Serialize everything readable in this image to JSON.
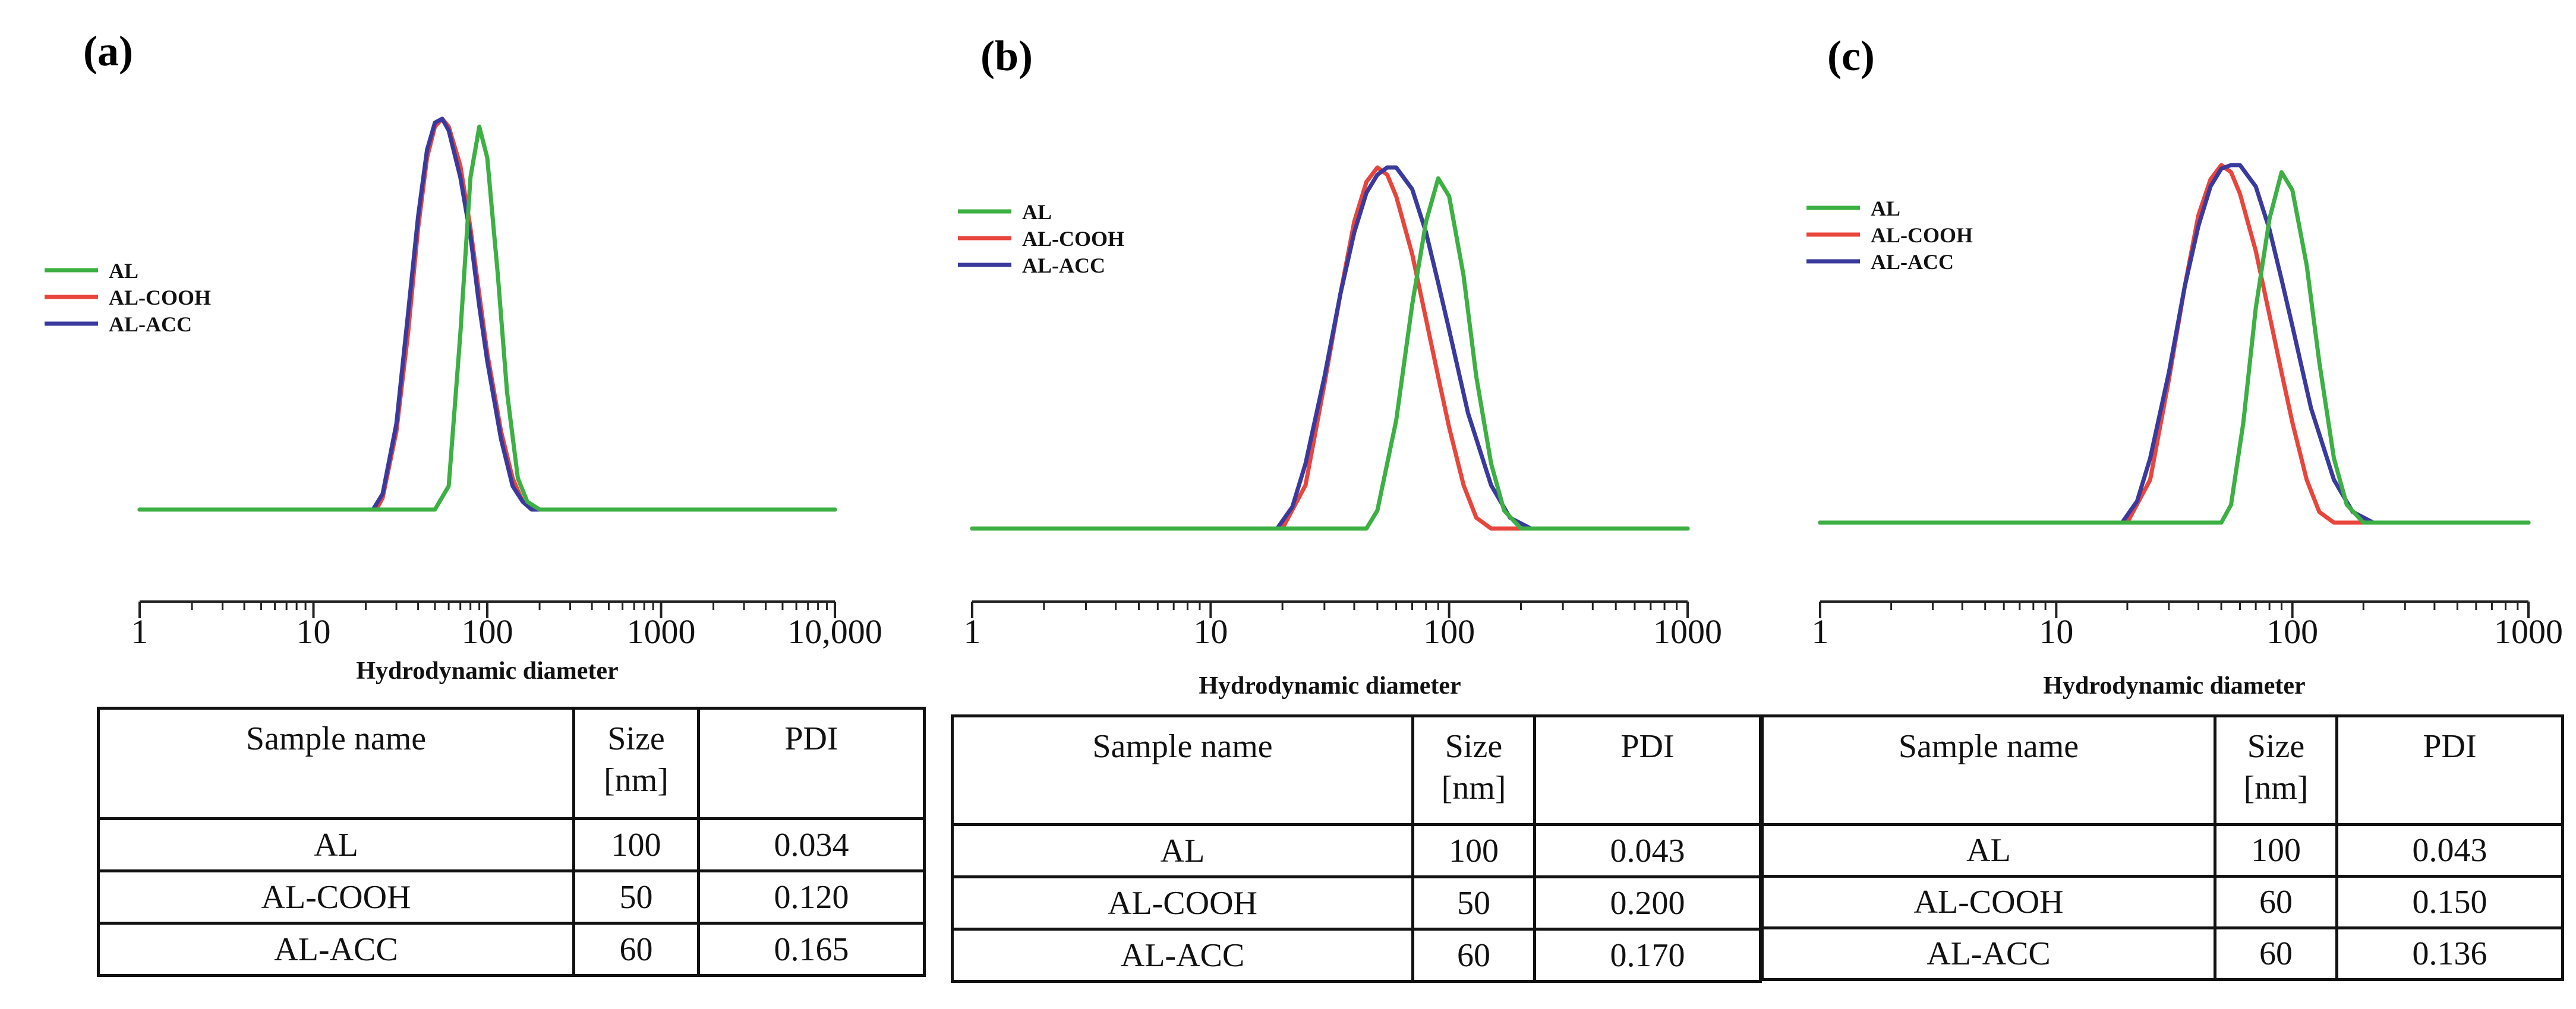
{
  "chart_data": [
    {
      "type": "line",
      "panel_label": "(a)",
      "xlabel": "Hydrodynamic diameter",
      "ylabel": "",
      "xscale": "log",
      "xlim": [
        1,
        10000
      ],
      "x_ticks": [
        "1",
        "10",
        "100",
        "1000",
        "10,000"
      ],
      "legend_position": "left",
      "series": [
        {
          "name": "AL",
          "color": "#3cb043",
          "x": [
            1,
            50,
            60,
            70,
            80,
            90,
            100,
            115,
            130,
            150,
            170,
            200,
            10000
          ],
          "y": [
            0,
            0,
            0.06,
            0.45,
            0.85,
            0.98,
            0.9,
            0.6,
            0.3,
            0.08,
            0.02,
            0,
            0
          ]
        },
        {
          "name": "AL-COOH",
          "color": "#e8453c",
          "x": [
            1,
            23,
            25,
            30,
            35,
            40,
            45,
            50,
            55,
            60,
            70,
            80,
            90,
            100,
            120,
            140,
            160,
            180,
            10000
          ],
          "y": [
            0,
            0,
            0.03,
            0.2,
            0.45,
            0.72,
            0.9,
            0.98,
            1.0,
            0.98,
            0.88,
            0.72,
            0.55,
            0.4,
            0.2,
            0.08,
            0.02,
            0,
            0
          ]
        },
        {
          "name": "AL-ACC",
          "color": "#3a3a9e",
          "x": [
            1,
            22,
            25,
            30,
            35,
            40,
            45,
            50,
            55,
            60,
            70,
            80,
            90,
            100,
            120,
            140,
            160,
            180,
            10000
          ],
          "y": [
            0,
            0,
            0.04,
            0.22,
            0.5,
            0.75,
            0.92,
            0.99,
            1.0,
            0.97,
            0.85,
            0.7,
            0.52,
            0.38,
            0.18,
            0.06,
            0.02,
            0,
            0
          ]
        }
      ]
    },
    {
      "type": "line",
      "panel_label": "(b)",
      "xlabel": "Hydrodynamic diameter",
      "ylabel": "",
      "xscale": "log",
      "xlim": [
        1,
        1000
      ],
      "x_ticks": [
        "1",
        "10",
        "100",
        "1000"
      ],
      "legend_position": "top-left",
      "series": [
        {
          "name": "AL",
          "color": "#3cb043",
          "x": [
            1,
            45,
            50,
            60,
            70,
            80,
            90,
            100,
            115,
            130,
            150,
            170,
            200,
            1000
          ],
          "y": [
            0,
            0,
            0.05,
            0.3,
            0.62,
            0.85,
            0.97,
            0.92,
            0.7,
            0.42,
            0.18,
            0.05,
            0,
            0
          ]
        },
        {
          "name": "AL-COOH",
          "color": "#e8453c",
          "x": [
            1,
            20,
            25,
            30,
            35,
            40,
            45,
            50,
            55,
            60,
            70,
            80,
            90,
            100,
            115,
            130,
            150,
            1000
          ],
          "y": [
            0,
            0,
            0.12,
            0.4,
            0.65,
            0.85,
            0.96,
            1.0,
            0.98,
            0.92,
            0.76,
            0.58,
            0.42,
            0.28,
            0.12,
            0.03,
            0,
            0
          ]
        },
        {
          "name": "AL-ACC",
          "color": "#3a3a9e",
          "x": [
            1,
            19,
            22,
            25,
            30,
            35,
            40,
            45,
            50,
            55,
            60,
            70,
            80,
            90,
            100,
            120,
            150,
            180,
            220,
            1000
          ],
          "y": [
            0,
            0,
            0.06,
            0.18,
            0.42,
            0.65,
            0.82,
            0.93,
            0.98,
            1.0,
            1.0,
            0.94,
            0.82,
            0.68,
            0.55,
            0.32,
            0.12,
            0.03,
            0,
            0
          ]
        }
      ]
    },
    {
      "type": "line",
      "panel_label": "(c)",
      "xlabel": "Hydrodynamic diameter",
      "ylabel": "",
      "xscale": "log",
      "xlim": [
        1,
        1000
      ],
      "x_ticks": [
        "1",
        "10",
        "100",
        "1000"
      ],
      "legend_position": "top-left",
      "series": [
        {
          "name": "AL",
          "color": "#3cb043",
          "x": [
            1,
            50,
            55,
            62,
            70,
            80,
            90,
            100,
            115,
            130,
            150,
            170,
            200,
            1000
          ],
          "y": [
            0,
            0,
            0.05,
            0.28,
            0.6,
            0.85,
            0.98,
            0.93,
            0.72,
            0.45,
            0.18,
            0.05,
            0,
            0
          ]
        },
        {
          "name": "AL-COOH",
          "color": "#e8453c",
          "x": [
            1,
            20,
            25,
            30,
            35,
            40,
            45,
            50,
            55,
            60,
            70,
            80,
            90,
            100,
            115,
            130,
            150,
            1000
          ],
          "y": [
            0,
            0,
            0.12,
            0.4,
            0.66,
            0.86,
            0.96,
            1.0,
            0.98,
            0.92,
            0.76,
            0.58,
            0.42,
            0.28,
            0.12,
            0.03,
            0,
            0
          ]
        },
        {
          "name": "AL-ACC",
          "color": "#3a3a9e",
          "x": [
            1,
            19,
            22,
            25,
            30,
            35,
            40,
            45,
            50,
            55,
            60,
            70,
            80,
            90,
            100,
            120,
            150,
            180,
            220,
            1000
          ],
          "y": [
            0,
            0,
            0.06,
            0.18,
            0.42,
            0.66,
            0.83,
            0.94,
            0.99,
            1.0,
            1.0,
            0.94,
            0.82,
            0.68,
            0.55,
            0.32,
            0.12,
            0.03,
            0,
            0
          ]
        }
      ]
    }
  ],
  "tables": [
    {
      "headers": [
        "Sample name",
        "Size [nm]",
        "PDI"
      ],
      "header_lines": [
        [
          "Sample name"
        ],
        [
          "Size",
          "[nm]"
        ],
        [
          "PDI"
        ]
      ],
      "rows": [
        [
          "AL",
          "100",
          "0.034"
        ],
        [
          "AL-COOH",
          "50",
          "0.120"
        ],
        [
          "AL-ACC",
          "60",
          "0.165"
        ]
      ]
    },
    {
      "headers": [
        "Sample name",
        "Size [nm]",
        "PDI"
      ],
      "header_lines": [
        [
          "Sample name"
        ],
        [
          "Size",
          "[nm]"
        ],
        [
          "PDI"
        ]
      ],
      "rows": [
        [
          "AL",
          "100",
          "0.043"
        ],
        [
          "AL-COOH",
          "50",
          "0.200"
        ],
        [
          "AL-ACC",
          "60",
          "0.170"
        ]
      ]
    },
    {
      "headers": [
        "Sample name",
        "Size [nm]",
        "PDI"
      ],
      "header_lines": [
        [
          "Sample name"
        ],
        [
          "Size",
          "[nm]"
        ],
        [
          "PDI"
        ]
      ],
      "rows": [
        [
          "AL",
          "100",
          "0.043"
        ],
        [
          "AL-COOH",
          "60",
          "0.150"
        ],
        [
          "AL-ACC",
          "60",
          "0.136"
        ]
      ]
    }
  ]
}
